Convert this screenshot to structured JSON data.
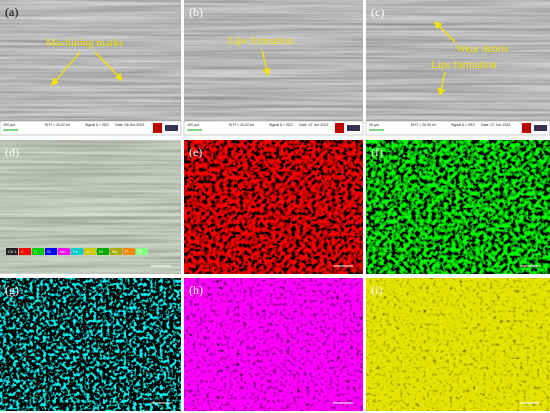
{
  "panels": [
    {
      "label": "(a)",
      "footer": {
        "scale": "200 µm",
        "eht": "EHT = 20.00 kV",
        "signal": "Signal A = SE2",
        "date": "Date :26 Jun 2023"
      },
      "annotations": [
        "Machining marks"
      ]
    },
    {
      "label": "(b)",
      "footer": {
        "scale": "100 µm",
        "eht": "EHT = 20.00 kV",
        "signal": "Signal A = SE2",
        "date": "Date :27 Jun 2023"
      },
      "annotations": [
        "Lips formation"
      ]
    },
    {
      "label": "(c)",
      "footer": {
        "scale": "30 µm",
        "eht": "EHT = 20.00 kV",
        "signal": "Signal A = SE2",
        "date": "Date :27 Jun 2023"
      },
      "annotations": [
        "Wear debris",
        "Lips formation"
      ]
    },
    {
      "label": "(d)",
      "legend": [
        "Ch 1",
        "C",
        "O",
        "Si",
        "Mn",
        "Fe",
        "Cr",
        "Ni",
        "Mg",
        "P",
        "S"
      ]
    },
    {
      "label": "(e)"
    },
    {
      "label": "(f)"
    },
    {
      "label": "(g)"
    },
    {
      "label": "(h)"
    },
    {
      "label": "(i)"
    }
  ]
}
